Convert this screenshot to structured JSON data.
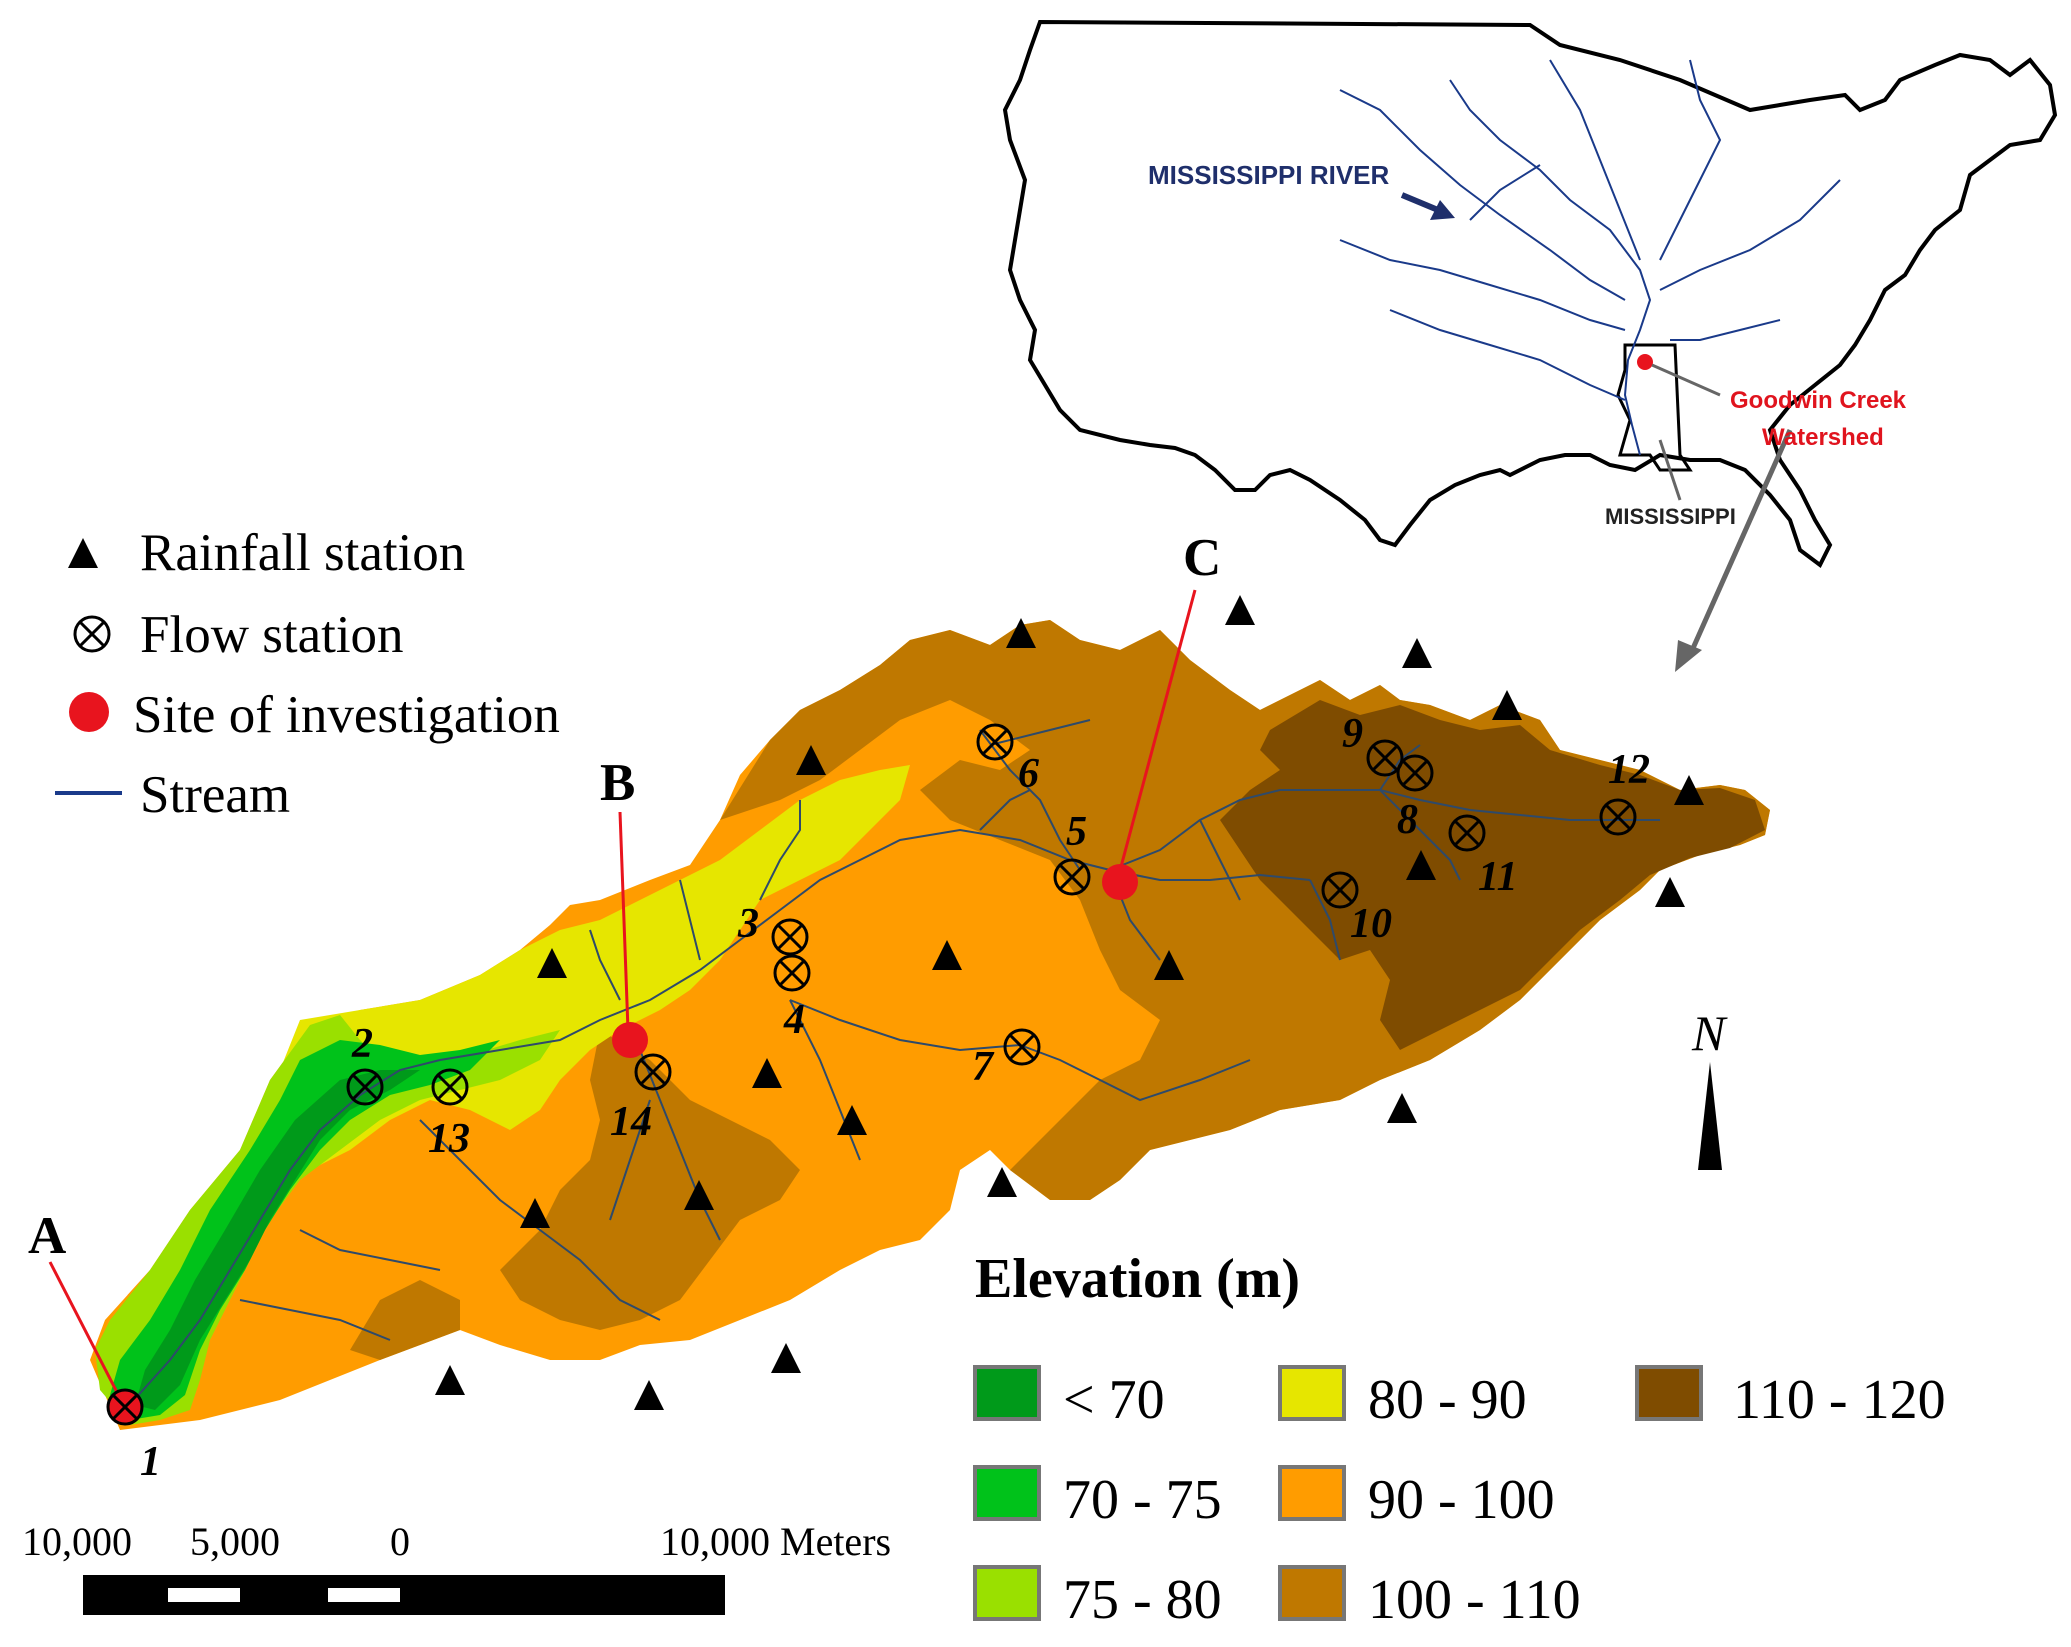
{
  "legend": {
    "rainfall": "Rainfall station",
    "flow": "Flow station",
    "site": "Site of investigation",
    "stream": "Stream"
  },
  "sites": [
    "A",
    "B",
    "C"
  ],
  "flow_stations": [
    "1",
    "2",
    "3",
    "4",
    "5",
    "6",
    "7",
    "8",
    "9",
    "10",
    "11",
    "12",
    "13",
    "14"
  ],
  "elevation": {
    "title": "Elevation (m)",
    "classes": [
      {
        "label": "< 70",
        "color": "#009a1a"
      },
      {
        "label": "70 - 75",
        "color": "#00c21a"
      },
      {
        "label": "75 - 80",
        "color": "#9ae000"
      },
      {
        "label": "80 - 90",
        "color": "#e6e600"
      },
      {
        "label": "90 - 100",
        "color": "#ff9c00"
      },
      {
        "label": "100 - 110",
        "color": "#bf7800"
      },
      {
        "label": "110 - 120",
        "color": "#7f4c00"
      }
    ]
  },
  "scale": {
    "ticks": [
      "10,000",
      "5,000",
      "0",
      "10,000 Meters"
    ]
  },
  "north": "N",
  "inset": {
    "river_label": "MISSISSIPPI RIVER",
    "watershed_line1": "Goodwin Creek",
    "watershed_line2": "Watershed",
    "state_label": "MISSISSIPPI"
  },
  "colors": {
    "site": "#e8141e",
    "river": "#1a3a8a",
    "stream": "#2e4a6a"
  }
}
